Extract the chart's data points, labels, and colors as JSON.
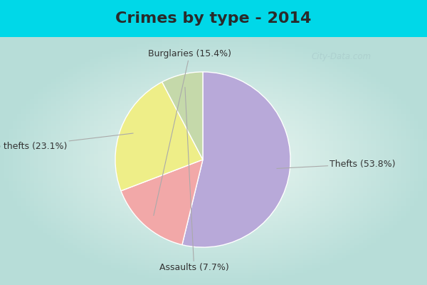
{
  "title": "Crimes by type - 2014",
  "labels": [
    "Thefts",
    "Burglaries",
    "Auto thefts",
    "Assaults"
  ],
  "values": [
    53.8,
    15.4,
    23.1,
    7.7
  ],
  "colors": [
    "#b8a9d9",
    "#f2a8a8",
    "#eeee88",
    "#c5d9aa"
  ],
  "background_top": "#00d8e8",
  "background_main_tl": "#b8ddd8",
  "background_main_center": "#e8f4f0",
  "title_fontsize": 16,
  "label_fontsize": 9,
  "watermark": "City-Data.com",
  "startangle": 90,
  "wedge_edgecolor": "white",
  "wedge_linewidth": 1.0,
  "label_color": "#333333",
  "arrow_color": "#aaaaaa"
}
